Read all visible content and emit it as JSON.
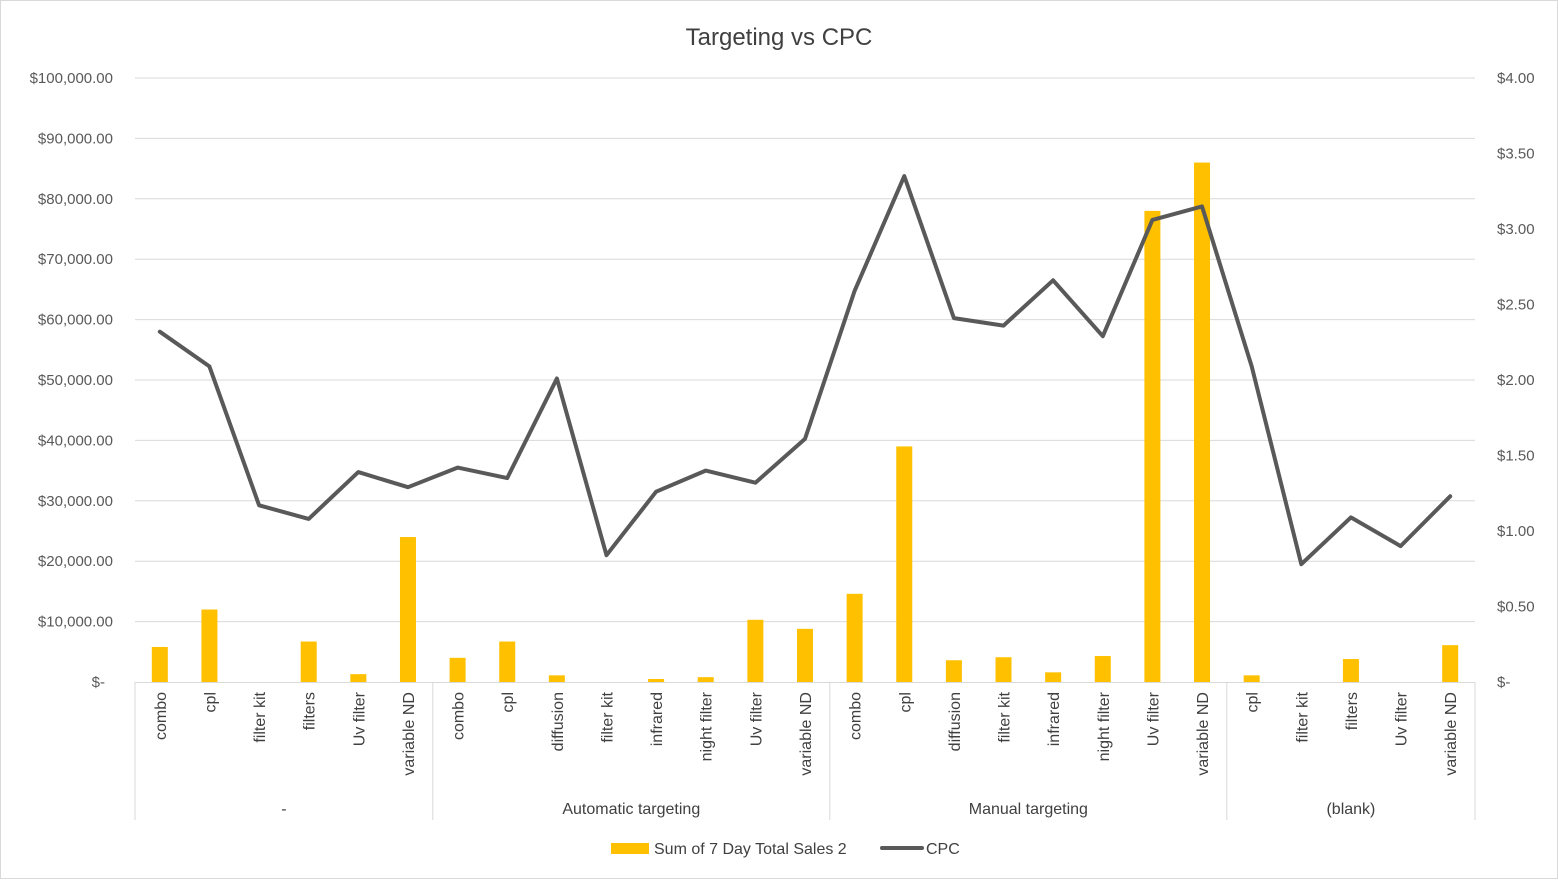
{
  "chart_data": {
    "type": "bar",
    "title": "Targeting vs CPC",
    "groups": [
      {
        "name": "-",
        "categories": [
          "combo",
          "cpl",
          "filter kit",
          "filters",
          "Uv filter",
          "variable ND"
        ]
      },
      {
        "name": "Automatic targeting",
        "categories": [
          "combo",
          "cpl",
          "diffusion",
          "filter kit",
          "infrared",
          "night filter",
          "Uv filter",
          "variable ND"
        ]
      },
      {
        "name": "Manual targeting",
        "categories": [
          "combo",
          "cpl",
          "diffusion",
          "filter kit",
          "infrared",
          "night filter",
          "Uv filter",
          "variable ND"
        ]
      },
      {
        "name": "(blank)",
        "categories": [
          "cpl",
          "filter kit",
          "filters",
          "Uv filter",
          "variable ND"
        ]
      }
    ],
    "series": [
      {
        "name": "Sum of 7 Day Total Sales 2",
        "type": "bar",
        "axis": "left",
        "color": "#FFC000",
        "values": [
          5800,
          12000,
          0,
          6700,
          1300,
          24000,
          4000,
          6700,
          1100,
          0,
          500,
          800,
          10300,
          8800,
          14600,
          39000,
          3600,
          4100,
          1600,
          4300,
          78000,
          86000,
          1100,
          0,
          3800,
          0,
          6100
        ]
      },
      {
        "name": "CPC",
        "type": "line",
        "axis": "right",
        "color": "#595959",
        "values": [
          2.32,
          2.09,
          1.17,
          1.08,
          1.39,
          1.29,
          1.42,
          1.35,
          2.01,
          0.84,
          1.26,
          1.4,
          1.32,
          1.61,
          2.59,
          3.35,
          2.41,
          2.36,
          2.66,
          2.29,
          3.06,
          3.15,
          2.09,
          0.78,
          1.09,
          0.9,
          1.23
        ]
      }
    ],
    "left_axis": {
      "min": 0,
      "max": 100000,
      "step": 10000,
      "tick_labels": [
        "$-",
        "$10,000.00",
        "$20,000.00",
        "$30,000.00",
        "$40,000.00",
        "$50,000.00",
        "$60,000.00",
        "$70,000.00",
        "$80,000.00",
        "$90,000.00",
        "$100,000.00"
      ]
    },
    "right_axis": {
      "min": 0,
      "max": 4,
      "step": 0.5,
      "tick_labels": [
        "$-",
        "$0.50",
        "$1.00",
        "$1.50",
        "$2.00",
        "$2.50",
        "$3.00",
        "$3.50",
        "$4.00"
      ]
    },
    "grid": true,
    "legend_position": "bottom"
  }
}
